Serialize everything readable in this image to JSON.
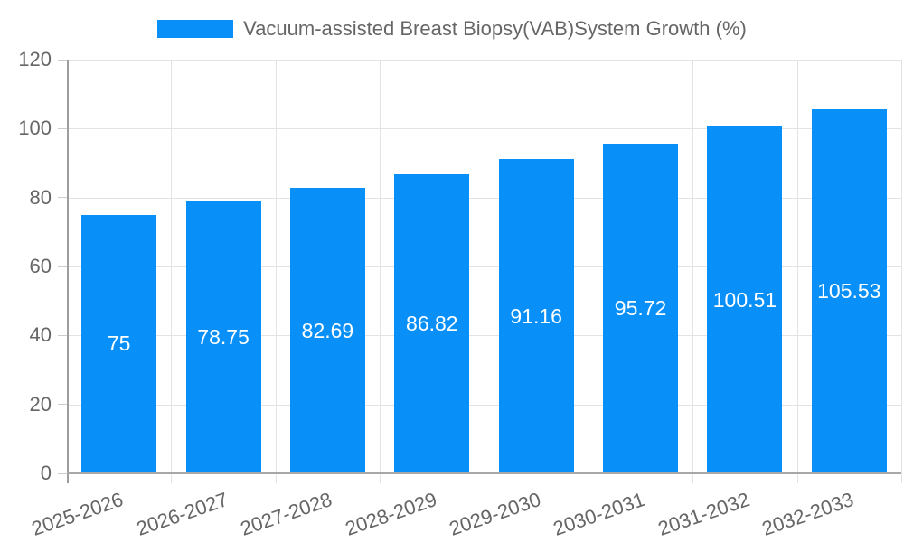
{
  "chart_data": {
    "type": "bar",
    "title": "Vacuum-assisted Breast Biopsy(VAB)System Growth (%)",
    "legend_entries": [
      "Vacuum-assisted Breast Biopsy(VAB)System Growth (%)"
    ],
    "legend_position": "top",
    "categories": [
      "2025-2026",
      "2026-2027",
      "2027-2028",
      "2028-2029",
      "2029-2030",
      "2030-2031",
      "2031-2032",
      "2032-2033"
    ],
    "values": [
      75,
      78.75,
      82.69,
      86.82,
      91.16,
      95.72,
      100.51,
      105.53
    ],
    "value_labels": [
      "75",
      "78.75",
      "82.69",
      "86.82",
      "91.16",
      "95.72",
      "100.51",
      "105.53"
    ],
    "xlabel": "",
    "ylabel": "",
    "ylim": [
      0,
      120
    ],
    "yticks": [
      0,
      20,
      40,
      60,
      80,
      100,
      120
    ],
    "grid": true,
    "colors": {
      "bar": "#0990f8",
      "bar_label_text": "#ffffff",
      "axis_text": "#666666",
      "grid_line": "#e3e3e3",
      "axis_line": "#9e9e9e",
      "background": "#ffffff"
    }
  }
}
